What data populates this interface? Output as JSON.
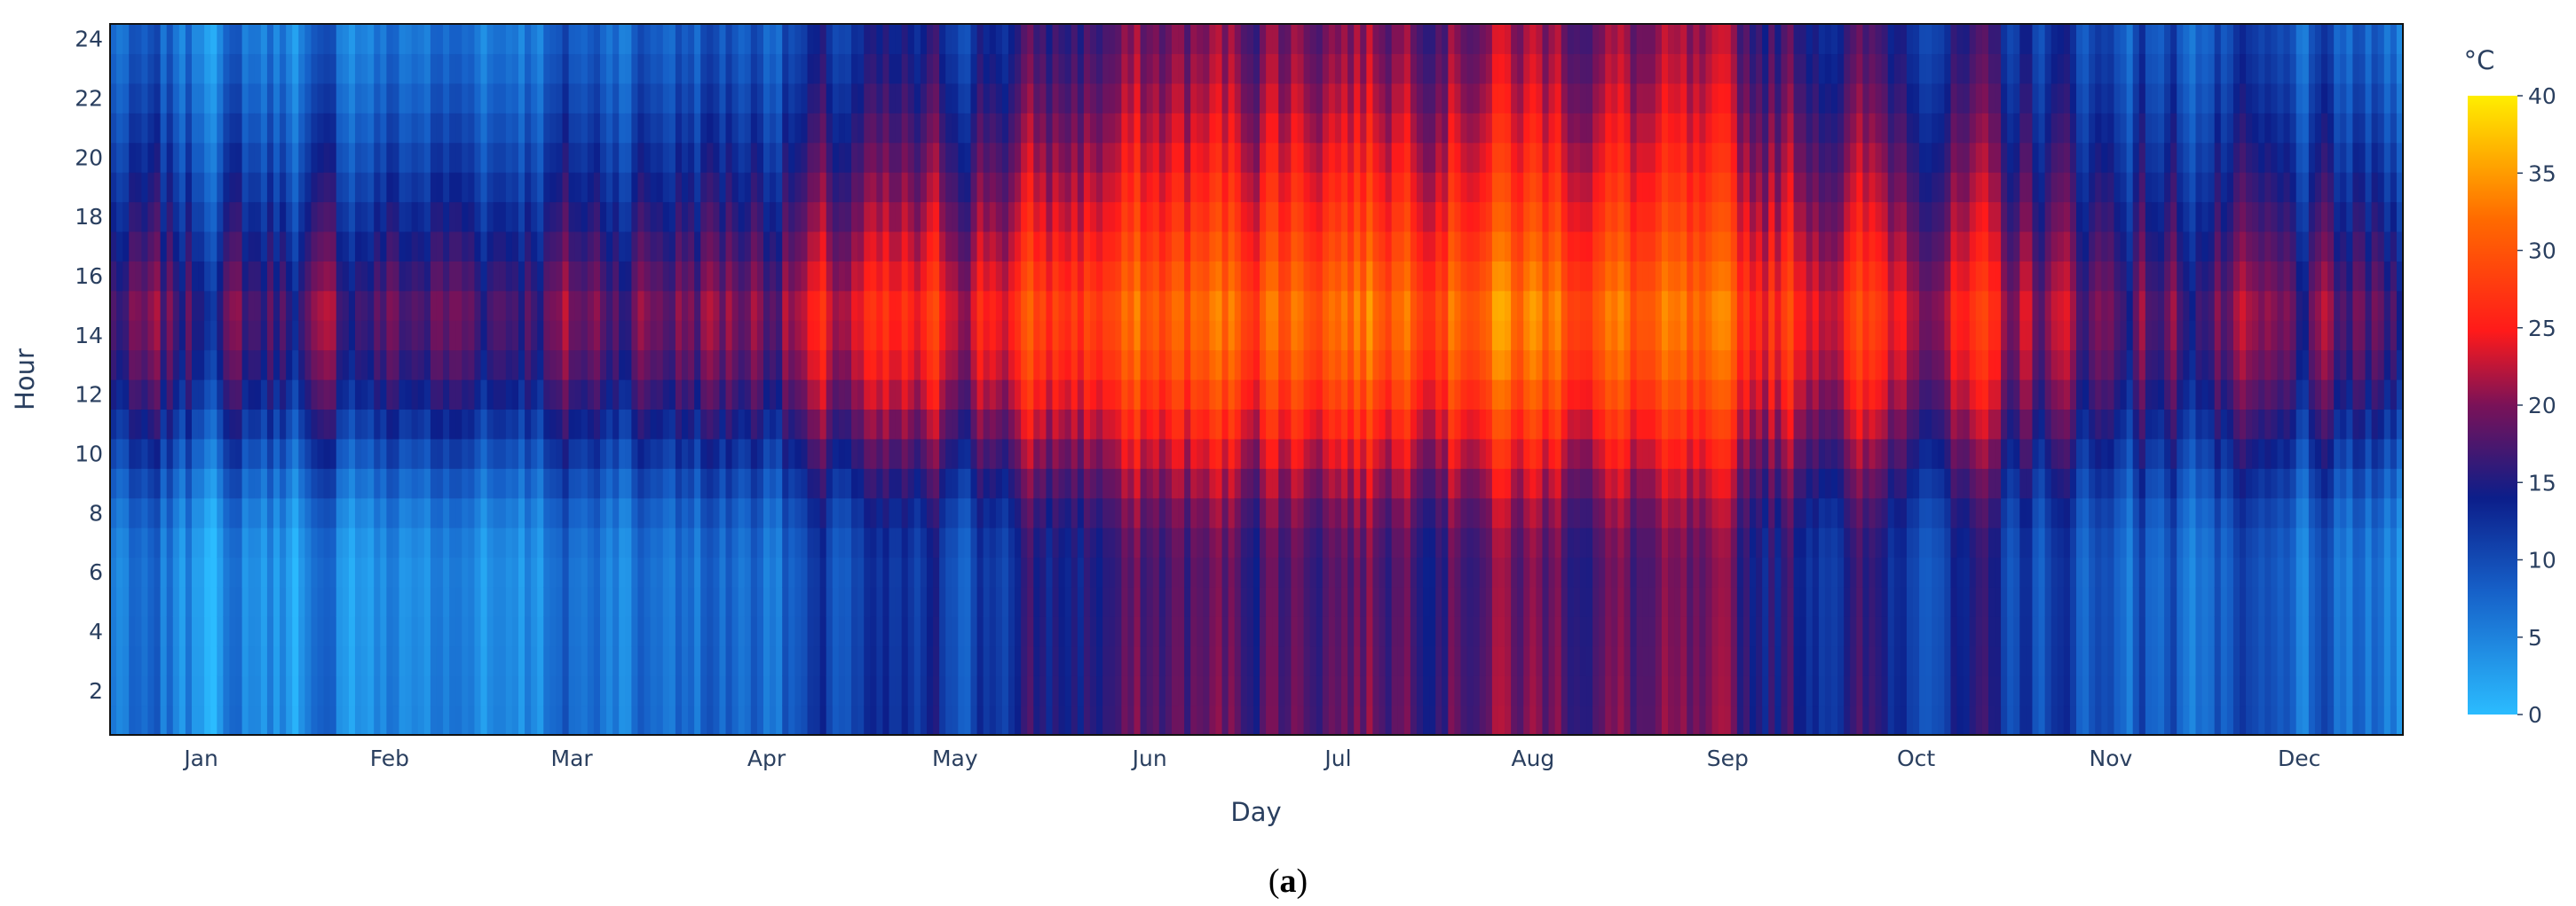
{
  "chart_data": {
    "type": "heatmap",
    "xlabel": "Day",
    "ylabel": "Hour",
    "x_tick_labels": [
      "Jan",
      "Feb",
      "Mar",
      "Apr",
      "May",
      "Jun",
      "Jul",
      "Aug",
      "Sep",
      "Oct",
      "Nov",
      "Dec"
    ],
    "x_range_days": [
      1,
      365
    ],
    "y_ticks": [
      2,
      4,
      6,
      8,
      10,
      12,
      14,
      16,
      18,
      20,
      22,
      24
    ],
    "y_range": [
      0.5,
      24.5
    ],
    "colorbar": {
      "unit": "°C",
      "min": 0,
      "max": 40,
      "ticks": [
        0,
        5,
        10,
        15,
        20,
        25,
        30,
        35,
        40
      ],
      "colorscale": [
        [
          0.0,
          "#2bbcff"
        ],
        [
          0.2,
          "#1660c8"
        ],
        [
          0.35,
          "#0c1e8a"
        ],
        [
          0.5,
          "#7a1258"
        ],
        [
          0.62,
          "#ff1a1a"
        ],
        [
          0.8,
          "#ff6a00"
        ],
        [
          1.0,
          "#ffee00"
        ]
      ]
    },
    "monthly_mean_temperature": {
      "months": [
        "Jan",
        "Feb",
        "Mar",
        "Apr",
        "May",
        "Jun",
        "Jul",
        "Aug",
        "Sep",
        "Oct",
        "Nov",
        "Dec"
      ],
      "night_min": [
        4,
        4,
        6,
        8,
        11,
        17,
        19,
        19,
        16,
        13,
        9,
        6
      ],
      "afternoon_max": [
        17,
        18,
        19,
        21,
        25,
        30,
        33,
        33,
        28,
        25,
        19,
        17
      ]
    },
    "grid": false,
    "colorbar_placement": "right"
  },
  "caption": {
    "open": "(",
    "label": "a",
    "close": ")"
  }
}
